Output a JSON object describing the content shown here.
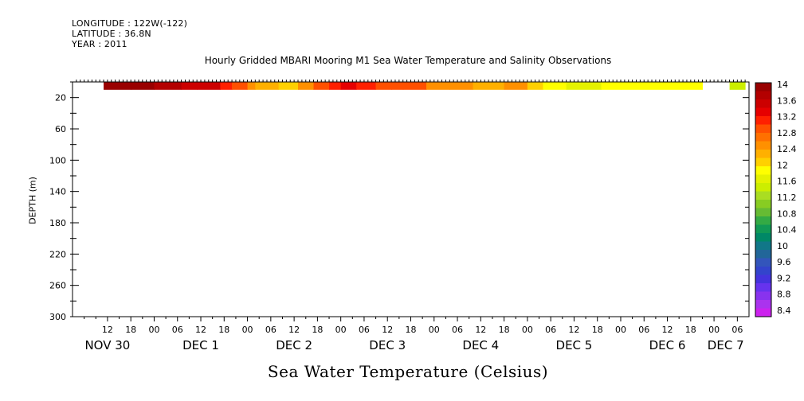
{
  "header": {
    "longitude": "LONGITUDE : 122W(-122)",
    "latitude": "LATITUDE : 36.8N",
    "year": "YEAR : 2011"
  },
  "chart_data": {
    "type": "heatmap",
    "title": "Hourly Gridded MBARI Mooring M1 Sea Water Temperature and Salinity Observations",
    "xlabel": "Sea Water Temperature (Celsius)",
    "ylabel": "DEPTH (m)",
    "x_hours_range": [
      -21,
      153
    ],
    "y_depth_range": [
      300,
      0
    ],
    "y_ticks": [
      20,
      60,
      100,
      140,
      180,
      220,
      260,
      300
    ],
    "y_tick_labels": [
      "20",
      "60",
      "100",
      "140",
      "180",
      "220",
      "260",
      "300"
    ],
    "x_hour_ticks": [
      -12,
      -6,
      0,
      6,
      12,
      18,
      24,
      30,
      36,
      42,
      48,
      54,
      60,
      66,
      72,
      78,
      84,
      90,
      96,
      102,
      108,
      114,
      120,
      126,
      132,
      138,
      144,
      150
    ],
    "x_hour_labels": [
      "12",
      "18",
      "00",
      "06",
      "12",
      "18",
      "00",
      "06",
      "12",
      "18",
      "00",
      "06",
      "12",
      "18",
      "00",
      "06",
      "12",
      "18",
      "00",
      "06",
      "12",
      "18",
      "00",
      "06",
      "12",
      "18",
      "00",
      "06"
    ],
    "x_date_labels": [
      {
        "hour": -12,
        "label": "NOV 30"
      },
      {
        "hour": 12,
        "label": "DEC  1"
      },
      {
        "hour": 36,
        "label": "DEC  2"
      },
      {
        "hour": 60,
        "label": "DEC  3"
      },
      {
        "hour": 84,
        "label": "DEC  4"
      },
      {
        "hour": 108,
        "label": "DEC  5"
      },
      {
        "hour": 132,
        "label": "DEC  6"
      },
      {
        "hour": 147,
        "label": "DEC  7"
      }
    ],
    "data_depth_range": [
      0,
      10
    ],
    "temperature_segments": [
      {
        "start": -13,
        "end": -6,
        "value": 13.9
      },
      {
        "start": -6,
        "end": 0,
        "value": 13.8
      },
      {
        "start": 0,
        "end": 7,
        "value": 13.7
      },
      {
        "start": 7,
        "end": 11,
        "value": 13.6
      },
      {
        "start": 11,
        "end": 17,
        "value": 13.4
      },
      {
        "start": 17,
        "end": 20,
        "value": 13.1
      },
      {
        "start": 20,
        "end": 24,
        "value": 12.9
      },
      {
        "start": 24,
        "end": 26,
        "value": 12.6
      },
      {
        "start": 26,
        "end": 32,
        "value": 12.3
      },
      {
        "start": 32,
        "end": 37,
        "value": 12.1
      },
      {
        "start": 37,
        "end": 41,
        "value": 12.4
      },
      {
        "start": 41,
        "end": 45,
        "value": 12.8
      },
      {
        "start": 45,
        "end": 48,
        "value": 13.1
      },
      {
        "start": 48,
        "end": 52,
        "value": 13.3
      },
      {
        "start": 52,
        "end": 57,
        "value": 13.2
      },
      {
        "start": 57,
        "end": 61,
        "value": 12.9
      },
      {
        "start": 61,
        "end": 64,
        "value": 13.0
      },
      {
        "start": 64,
        "end": 70,
        "value": 12.8
      },
      {
        "start": 70,
        "end": 76,
        "value": 12.6
      },
      {
        "start": 76,
        "end": 82,
        "value": 12.4
      },
      {
        "start": 82,
        "end": 90,
        "value": 12.3
      },
      {
        "start": 90,
        "end": 96,
        "value": 12.6
      },
      {
        "start": 96,
        "end": 100,
        "value": 12.1
      },
      {
        "start": 100,
        "end": 106,
        "value": 11.9
      },
      {
        "start": 106,
        "end": 115,
        "value": 11.7
      },
      {
        "start": 115,
        "end": 120,
        "value": 11.9
      },
      {
        "start": 120,
        "end": 136,
        "value": 12.0
      },
      {
        "start": 136,
        "end": 141,
        "value": 11.9
      },
      {
        "start": 148,
        "end": 152,
        "value": 11.6
      }
    ]
  },
  "colorbar": {
    "labels": [
      "14",
      "13.6",
      "13.2",
      "12.8",
      "12.4",
      "12",
      "11.6",
      "11.2",
      "10.8",
      "10.4",
      "10",
      "9.6",
      "9.2",
      "8.8",
      "8.4"
    ],
    "min": 8.4,
    "max": 14,
    "colors": [
      "#990000",
      "#b30000",
      "#cc0000",
      "#e60000",
      "#ff2000",
      "#ff5000",
      "#ff7000",
      "#ff9000",
      "#ffb000",
      "#ffd000",
      "#ffff00",
      "#e5f200",
      "#ccee00",
      "#aadd22",
      "#88cc22",
      "#66bb33",
      "#33aa44",
      "#119955",
      "#008866",
      "#117788",
      "#226699",
      "#3355bb",
      "#3344cc",
      "#4433dd",
      "#6633ee",
      "#8833ee",
      "#aa33ee",
      "#cc22ee"
    ]
  }
}
